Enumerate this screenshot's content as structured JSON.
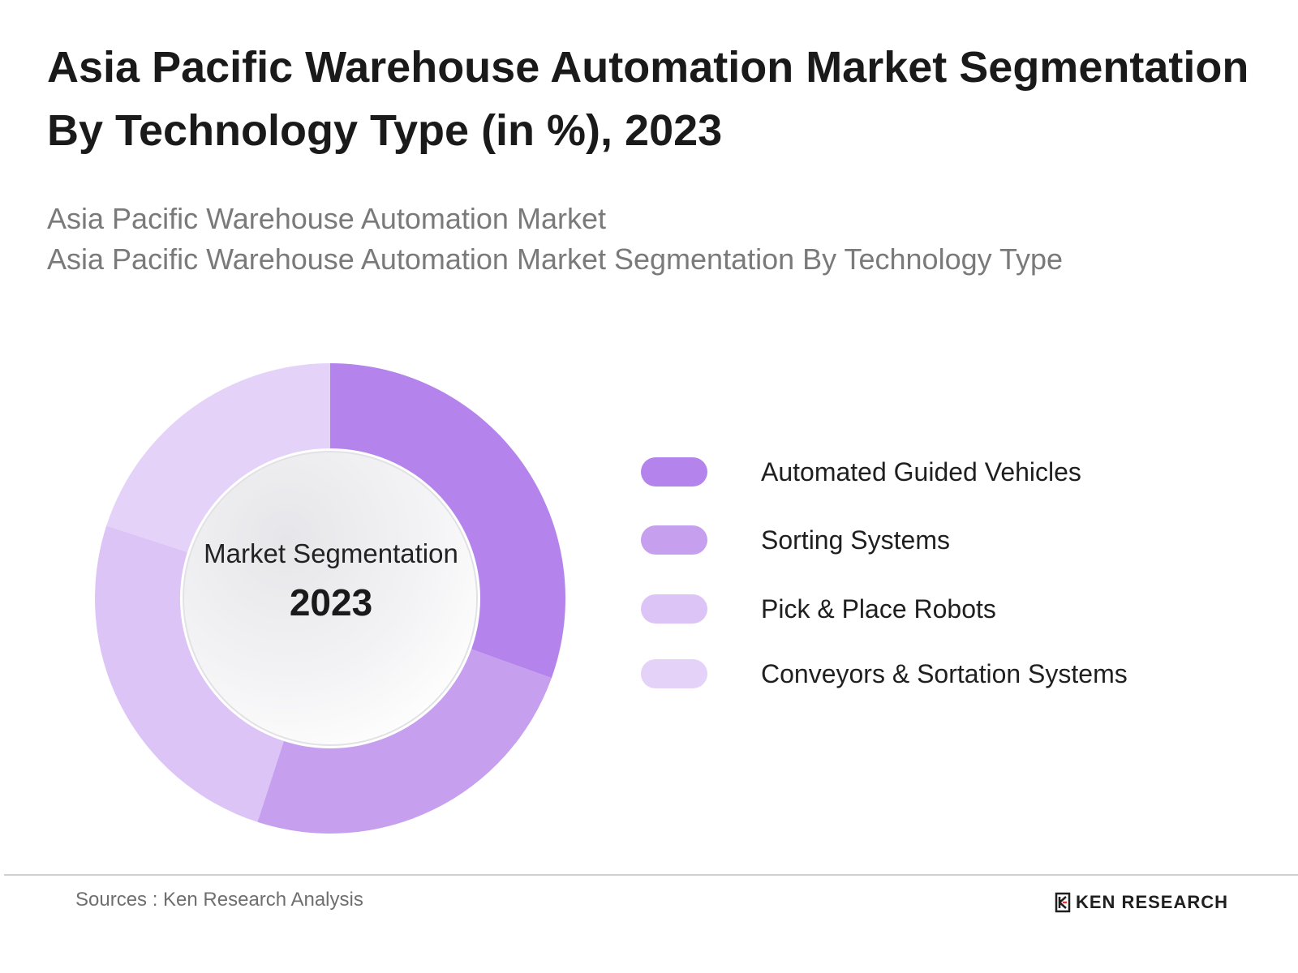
{
  "header": {
    "title": "Asia Pacific Warehouse Automation Market Segmentation By Technology Type (in %), 2023",
    "subtitle_line1": "Asia Pacific Warehouse Automation Market",
    "subtitle_line2": "Asia Pacific Warehouse Automation Market Segmentation By Technology Type"
  },
  "center": {
    "label": "Market Segmentation",
    "year": "2023"
  },
  "chart_data": {
    "type": "pie",
    "title": "Asia Pacific Warehouse Automation Market Segmentation By Technology Type (in %), 2023",
    "categories": [
      "Automated Guided Vehicles",
      "Sorting Systems",
      "Pick & Place Robots",
      "Conveyors & Sortation Systems"
    ],
    "values": [
      30.5,
      24.5,
      25,
      20
    ],
    "unit": "%",
    "colors": [
      "#b484ec",
      "#c6a0ef",
      "#dcc4f6",
      "#e4d2f8"
    ],
    "legend_position": "right",
    "donut": true
  },
  "footer": {
    "source": "Sources : Ken Research Analysis",
    "brand": "KEN RESEARCH"
  }
}
